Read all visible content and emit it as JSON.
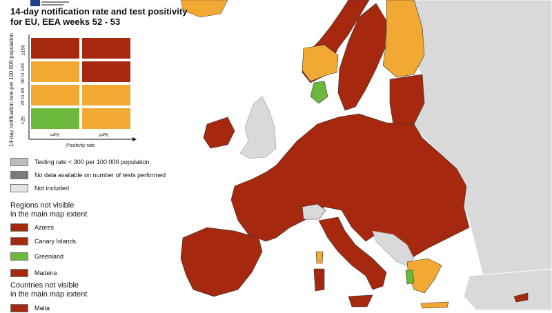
{
  "title": {
    "line1": "14-day notification rate and test positivity",
    "line2": "for EU, EEA weeks 52 - 53"
  },
  "colors": {
    "dark_red": "#a5280f",
    "orange": "#f2a933",
    "green": "#6cb83a",
    "grey_testing": "#bdbdbd",
    "dark_grey": "#7a7a7a",
    "light_grey": "#d9d9d9",
    "sea": "#ffffff"
  },
  "matrix": {
    "y_axis_label": "14-day notification rate per 100 000 population",
    "x_axis_label": "Positivity rate",
    "x_categories": [
      "<4%",
      "≥4%"
    ],
    "y_categories": [
      "≥150",
      "50 to 149",
      "25 to 49",
      "<25"
    ],
    "cells": [
      [
        "dark_red",
        "dark_red"
      ],
      [
        "orange",
        "dark_red"
      ],
      [
        "orange",
        "orange"
      ],
      [
        "green",
        "orange"
      ]
    ]
  },
  "legend": {
    "testing_rate": "Testing rate < 300 per 100 000 population",
    "no_data": "No data available on number of tests performed",
    "not_included": "Not included"
  },
  "regions": {
    "heading_line1": "Regions not visible",
    "heading_line2": "in the main map extent",
    "items": [
      {
        "label": "Azores",
        "color": "dark_red"
      },
      {
        "label": "Canary Islands",
        "color": "dark_red"
      },
      {
        "label": "Greenland",
        "color": "green"
      },
      {
        "label": "Madeira",
        "color": "dark_red"
      }
    ]
  },
  "countries": {
    "heading_line1": "Countries not visible",
    "heading_line2": "in the main map extent",
    "items": [
      {
        "label": "Malta",
        "color": "dark_red"
      }
    ]
  }
}
